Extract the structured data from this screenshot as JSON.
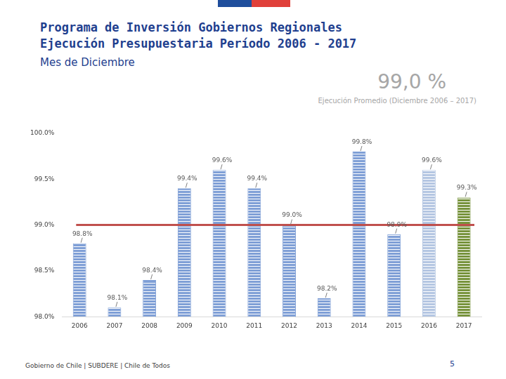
{
  "header": {
    "title": [
      "Programa de Inversión Gobiernos Regionales",
      "Ejecución Presupuestaria Período 2006 - 2017"
    ],
    "subtitle": "Mes de Diciembre"
  },
  "chart_data": {
    "type": "bar",
    "categories": [
      "2006",
      "2007",
      "2008",
      "2009",
      "2010",
      "2011",
      "2012",
      "2013",
      "2014",
      "2015",
      "2016",
      "2017"
    ],
    "values": [
      98.8,
      98.1,
      98.4,
      99.4,
      99.6,
      99.4,
      99.0,
      98.2,
      99.8,
      98.9,
      99.6,
      99.3
    ],
    "value_labels": [
      "98.8%",
      "98.1%",
      "98.4%",
      "99.4%",
      "99.6%",
      "99.4%",
      "99.0%",
      "98.2%",
      "99.8%",
      "98.9%",
      "99.6%",
      "99.3%"
    ],
    "data_labels": true,
    "colors": [
      "#7f9fd6",
      "#7f9fd6",
      "#7f9fd6",
      "#7f9fd6",
      "#7f9fd6",
      "#7f9fd6",
      "#7f9fd6",
      "#7f9fd6",
      "#7f9fd6",
      "#7f9fd6",
      "#b4c6e2",
      "#77933c"
    ],
    "ylim": [
      98.0,
      100.0
    ],
    "yticks": [
      {
        "value": 98.0,
        "label": "98.0%"
      },
      {
        "value": 98.5,
        "label": "98.5%"
      },
      {
        "value": 99.0,
        "label": "99.0%"
      },
      {
        "value": 99.5,
        "label": "99.5%"
      },
      {
        "value": 100.0,
        "label": "100.0%"
      }
    ],
    "grid": false,
    "average": 99.0,
    "annotations": [
      {
        "text": "99,0 %"
      },
      {
        "text": "Ejecución Promedio (Diciembre 2006 – 2017)"
      }
    ]
  },
  "footer": {
    "text": "Gobierno de Chile | SUBDERE | Chile de Todos",
    "page": 5
  }
}
